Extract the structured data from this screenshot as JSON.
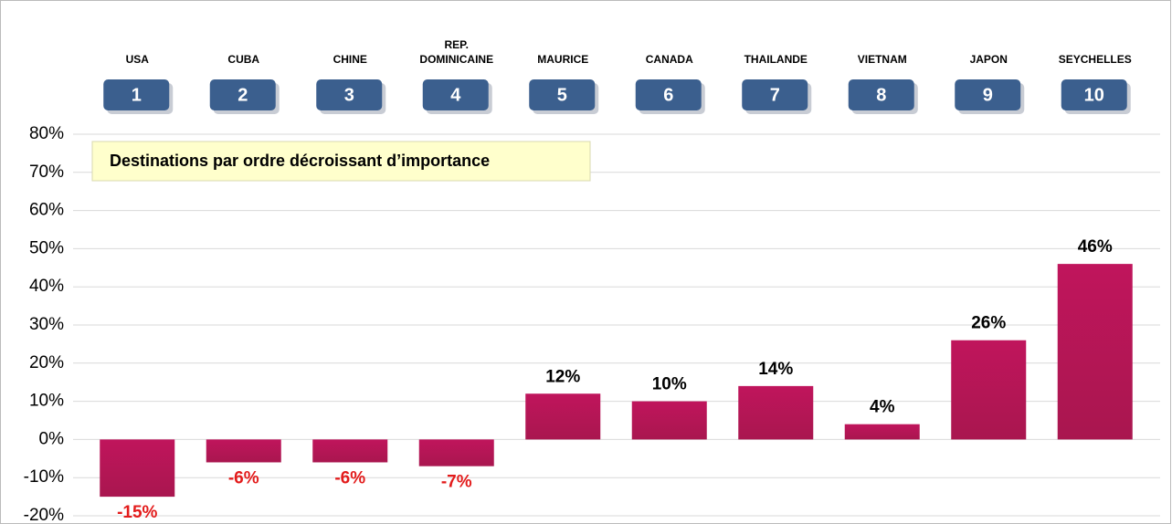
{
  "chart_data": {
    "type": "bar",
    "annotation": "Destinations par ordre décroissant d’importance",
    "categories": [
      "USA",
      "CUBA",
      "CHINE",
      "REP. DOMINICAINE",
      "MAURICE",
      "CANADA",
      "THAILANDE",
      "VIETNAM",
      "JAPON",
      "SEYCHELLES"
    ],
    "ranks": [
      "1",
      "2",
      "3",
      "4",
      "5",
      "6",
      "7",
      "8",
      "9",
      "10"
    ],
    "values": [
      -15,
      -6,
      -6,
      -7,
      12,
      10,
      14,
      4,
      26,
      46
    ],
    "value_labels": [
      "-15%",
      "-6%",
      "-6%",
      "-7%",
      "12%",
      "10%",
      "14%",
      "4%",
      "26%",
      "46%"
    ],
    "color": "#b5165a",
    "ylim": [
      -20,
      80
    ],
    "yticks": [
      {
        "value": -20,
        "label": "-20%"
      },
      {
        "value": -10,
        "label": "-10%"
      },
      {
        "value": 0,
        "label": "0%"
      },
      {
        "value": 10,
        "label": "10%"
      },
      {
        "value": 20,
        "label": "20%"
      },
      {
        "value": 30,
        "label": "30%"
      },
      {
        "value": 40,
        "label": "40%"
      },
      {
        "value": 50,
        "label": "50%"
      },
      {
        "value": 60,
        "label": "60%"
      },
      {
        "value": 70,
        "label": "70%"
      },
      {
        "value": 80,
        "label": "80%"
      }
    ],
    "grid": true
  }
}
